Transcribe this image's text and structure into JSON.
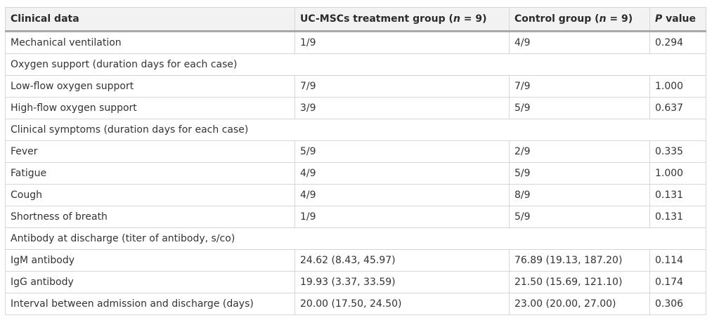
{
  "table": {
    "headers": {
      "col1": "Clinical data",
      "col2_pre": "UC-MSCs treatment group (",
      "col2_n": "n",
      "col2_post": " = 9)",
      "col3_pre": "Control group (",
      "col3_n": "n",
      "col3_post": " = 9)",
      "col4_p": "P",
      "col4_post": " value"
    },
    "rows": [
      {
        "label": "Mechanical ventilation",
        "treatment": "1/9",
        "control": "4/9",
        "p": "0.294"
      },
      {
        "label": "Oxygen support (duration days for each case)"
      },
      {
        "label": "Low-flow oxygen support",
        "treatment": "7/9",
        "control": "7/9",
        "p": "1.000"
      },
      {
        "label": "High-flow oxygen support",
        "treatment": "3/9",
        "control": "5/9",
        "p": "0.637"
      },
      {
        "label": "Clinical symptoms (duration days for each case)"
      },
      {
        "label": "Fever",
        "treatment": "5/9",
        "control": "2/9",
        "p": "0.335"
      },
      {
        "label": "Fatigue",
        "treatment": "4/9",
        "control": "5/9",
        "p": "1.000"
      },
      {
        "label": "Cough",
        "treatment": "4/9",
        "control": "8/9",
        "p": "0.131"
      },
      {
        "label": "Shortness of breath",
        "treatment": "1/9",
        "control": "5/9",
        "p": "0.131"
      },
      {
        "label": "Antibody at discharge (titer of antibody, s/co)"
      },
      {
        "label": "IgM antibody",
        "treatment": "24.62 (8.43, 45.97)",
        "control": "76.89 (19.13, 187.20)",
        "p": "0.114"
      },
      {
        "label": "IgG antibody",
        "treatment": "19.93 (3.37, 33.59)",
        "control": "21.50 (15.69, 121.10)",
        "p": "0.174"
      },
      {
        "label": "Interval between admission and discharge (days)",
        "treatment": "20.00 (17.50, 24.50)",
        "control": "23.00 (20.00, 27.00)",
        "p": "0.306"
      }
    ]
  }
}
